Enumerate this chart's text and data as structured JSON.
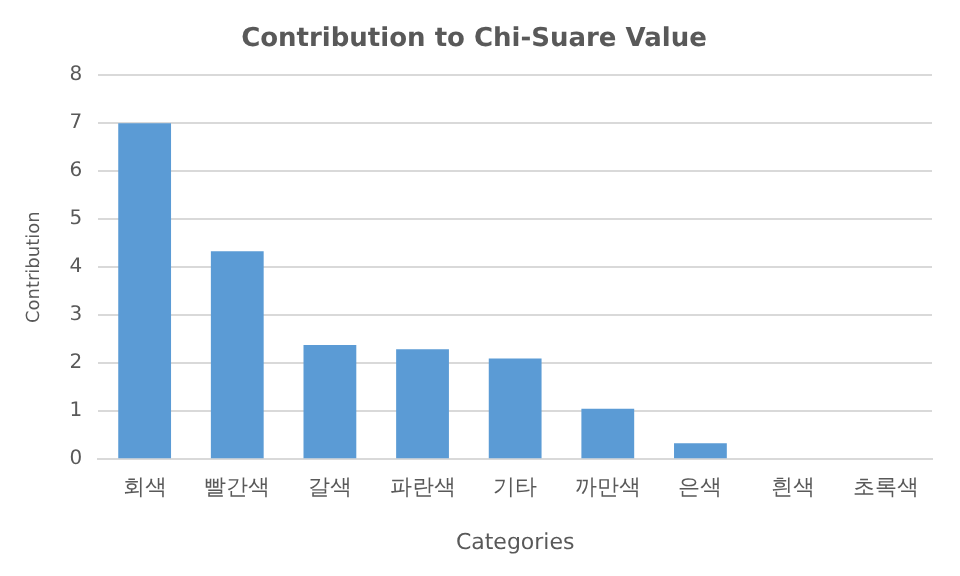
{
  "chart_data": {
    "type": "bar",
    "title": "Contribution to Chi-Suare Value",
    "xlabel": "Categories",
    "ylabel": "Contribution",
    "categories": [
      "회색",
      "빨간색",
      "갈색",
      "파란색",
      "기타",
      "까만색",
      "은색",
      "흰색",
      "초록색"
    ],
    "values": [
      7.0,
      4.33,
      2.38,
      2.29,
      2.1,
      1.05,
      0.33,
      0,
      0
    ],
    "color": "#5b9bd5",
    "ylim": [
      0,
      8
    ],
    "yticks": [
      0,
      1,
      2,
      3,
      4,
      5,
      6,
      7,
      8
    ],
    "grid": "y"
  }
}
